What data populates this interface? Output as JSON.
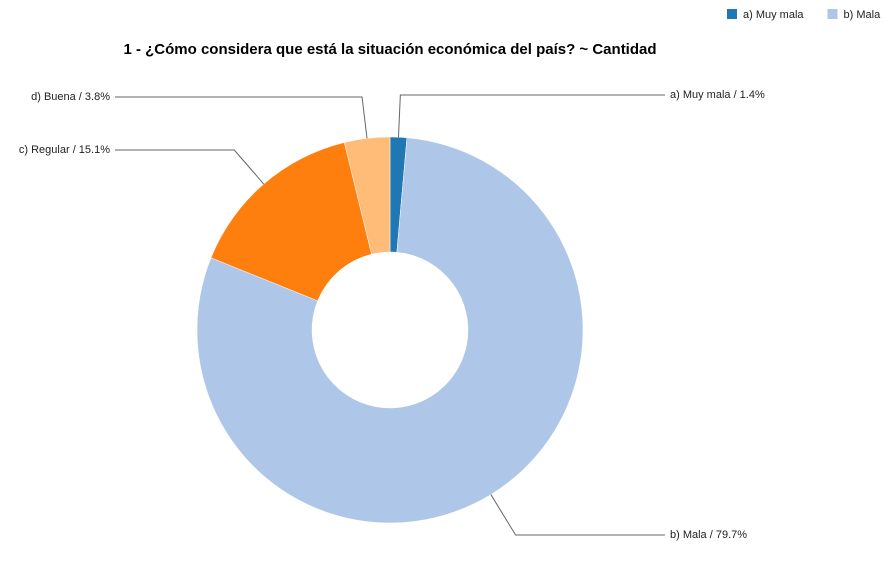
{
  "chart_data": {
    "type": "donut",
    "title": "1 - ¿Cómo considera que está la situación económica del país? ~ Cantidad",
    "categories": [
      "a) Muy mala",
      "b) Mala",
      "c) Regular",
      "d) Buena"
    ],
    "values": [
      1.4,
      79.7,
      15.1,
      3.8
    ],
    "value_labels": [
      "a) Muy mala / 1.4%",
      "b) Mala / 79.7%",
      "c) Regular / 15.1%",
      "d) Buena / 3.8%"
    ],
    "colors": [
      "#1f77b4",
      "#aec7e8",
      "#ff7f0e",
      "#ffbb78"
    ],
    "legend": {
      "position": "top-right",
      "shown": 2
    }
  }
}
